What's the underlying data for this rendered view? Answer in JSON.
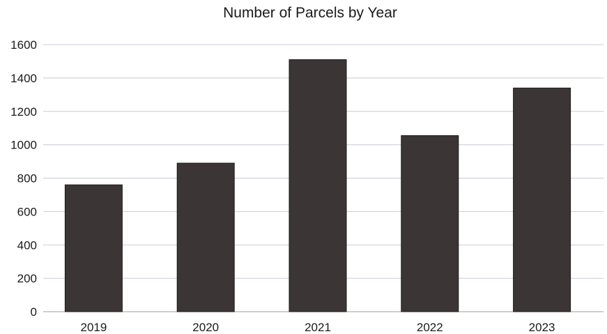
{
  "chart_data": {
    "type": "bar",
    "title": "Number of Parcels by Year",
    "categories": [
      "2019",
      "2020",
      "2021",
      "2022",
      "2023"
    ],
    "values": [
      760,
      890,
      1510,
      1055,
      1340
    ],
    "xlabel": "",
    "ylabel": "",
    "ylim": [
      0,
      1600
    ],
    "yticks": [
      0,
      200,
      400,
      600,
      800,
      1000,
      1200,
      1400,
      1600
    ],
    "grid": true,
    "legend": "none",
    "bar_color": "#3b3536"
  }
}
